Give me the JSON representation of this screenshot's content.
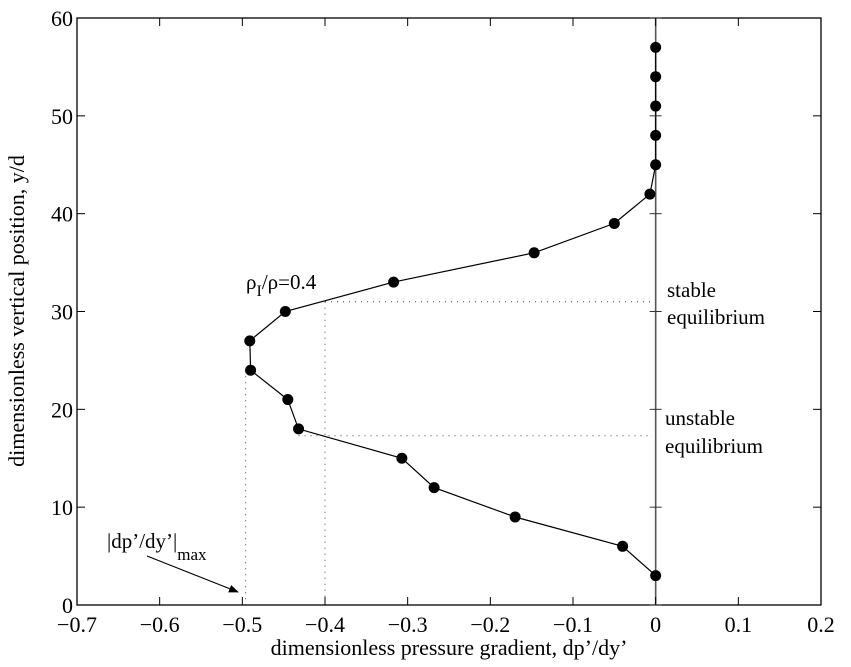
{
  "chart_data": {
    "type": "line",
    "title": "",
    "xlabel": "dimensionless pressure gradient, dp’/dy’",
    "ylabel": "dimensionless vertical position, y/d",
    "xlim": [
      -0.7,
      0.2
    ],
    "ylim": [
      0,
      60
    ],
    "xticks": [
      -0.7,
      -0.6,
      -0.5,
      -0.4,
      -0.3,
      -0.2,
      -0.1,
      0,
      0.1,
      0.2
    ],
    "xtick_labels": [
      "−0.7",
      "−0.6",
      "−0.5",
      "−0.4",
      "−0.3",
      "−0.2",
      "−0.1",
      "0",
      "0.1",
      "0.2"
    ],
    "yticks": [
      0,
      10,
      20,
      30,
      40,
      50,
      60
    ],
    "ytick_labels": [
      "0",
      "10",
      "20",
      "30",
      "40",
      "50",
      "60"
    ],
    "grid": false,
    "series": [
      {
        "name": "ρI/ρ=0.4",
        "marker": "filled-circle",
        "color": "#000000",
        "points": [
          {
            "x": 0.0,
            "y": 3
          },
          {
            "x": -0.04,
            "y": 6
          },
          {
            "x": -0.17,
            "y": 9
          },
          {
            "x": -0.268,
            "y": 12
          },
          {
            "x": -0.307,
            "y": 15
          },
          {
            "x": -0.432,
            "y": 18
          },
          {
            "x": -0.445,
            "y": 21
          },
          {
            "x": -0.49,
            "y": 24
          },
          {
            "x": -0.491,
            "y": 27
          },
          {
            "x": -0.448,
            "y": 30
          },
          {
            "x": -0.317,
            "y": 33
          },
          {
            "x": -0.147,
            "y": 36
          },
          {
            "x": -0.05,
            "y": 39
          },
          {
            "x": -0.007,
            "y": 42
          },
          {
            "x": 0.0,
            "y": 45
          },
          {
            "x": 0.0,
            "y": 48
          },
          {
            "x": 0.0,
            "y": 51
          },
          {
            "x": 0.0,
            "y": 54
          },
          {
            "x": 0.0,
            "y": 57
          }
        ]
      }
    ],
    "reference_lines": {
      "zero_vertical_x": 0,
      "dotted_vertical_x": [
        -0.496,
        -0.4
      ],
      "dotted_horizontal_y": [
        31,
        17.3
      ]
    },
    "annotations": {
      "curve_label_main": "ρ",
      "curve_label_sub": "I",
      "curve_label_rest": "/ρ=0.4",
      "max_label_main": "|dp’/dy’|",
      "max_label_sub": "max",
      "stable_line1": "stable",
      "stable_line2": "equilibrium",
      "unstable_line1": "unstable",
      "unstable_line2": "equilibrium"
    }
  }
}
